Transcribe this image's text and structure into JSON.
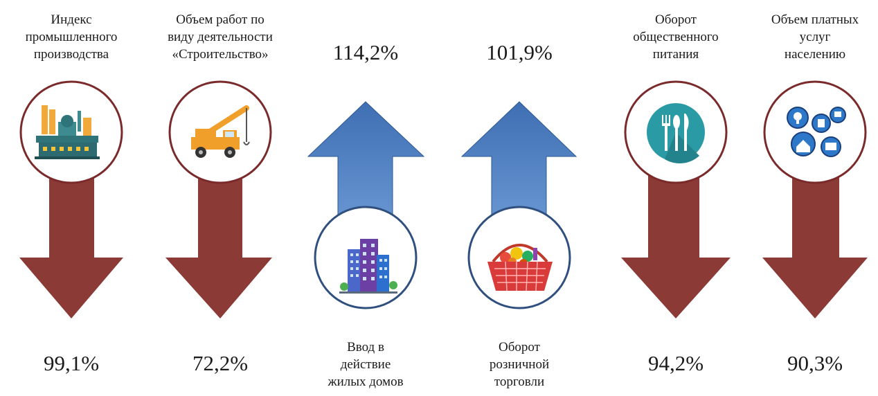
{
  "items": [
    {
      "label": "Индекс\nпромышленного\nпроизводства",
      "value": "99,1%",
      "direction": "down",
      "icon": "factory-icon"
    },
    {
      "label": "Объем работ по\nвиду деятельности\n«Строительство»",
      "value": "72,2%",
      "direction": "down",
      "icon": "crane-truck-icon"
    },
    {
      "label": "Ввод в\nдействие\nжилых  домов",
      "value": "114,2%",
      "direction": "up",
      "icon": "buildings-icon"
    },
    {
      "label": "Оборот\nрозничной\nторговли",
      "value": "101,9%",
      "direction": "up",
      "icon": "shopping-basket-icon"
    },
    {
      "label": "Оборот\nобщественного\nпитания",
      "value": "94,2%",
      "direction": "down",
      "icon": "cutlery-icon"
    },
    {
      "label": "Объем платных\nуслуг\nнаселению",
      "value": "90,3%",
      "direction": "down",
      "icon": "services-icon"
    }
  ],
  "colors": {
    "down_arrow": "#8b3a36",
    "up_arrow": "#4f7fbf",
    "down_circle_border": "#7a2a2a",
    "up_circle_border": "#2f4f7f"
  }
}
